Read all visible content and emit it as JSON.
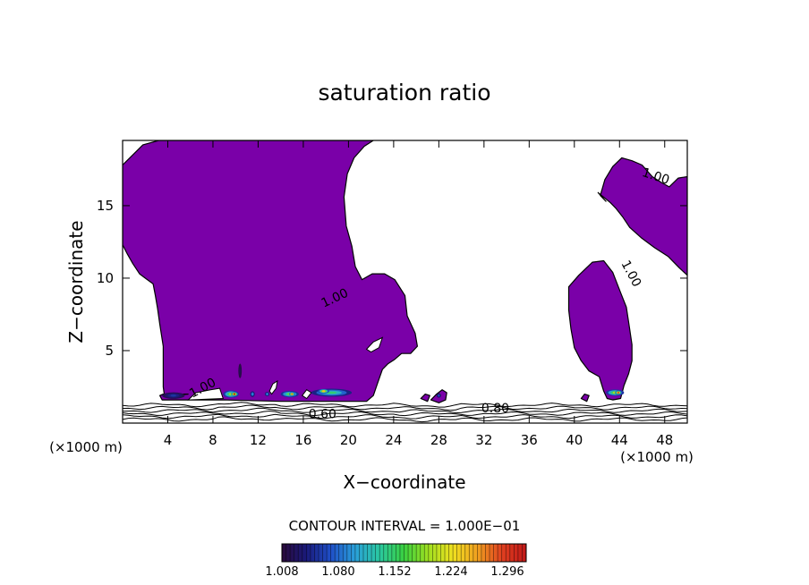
{
  "chart_data": {
    "type": "contour",
    "title": "saturation ratio",
    "xlabel": "X−coordinate",
    "ylabel": "Z−coordinate",
    "x_unit_left": "(×1000 m)",
    "x_unit_right": "(×1000 m)",
    "xlim": [
      0,
      50
    ],
    "ylim": [
      0,
      19.5
    ],
    "x_ticks": [
      4,
      8,
      12,
      16,
      20,
      24,
      28,
      32,
      36,
      40,
      44,
      48
    ],
    "x_tick_labels": [
      "4",
      "8",
      "12",
      "16",
      "20",
      "24",
      "28",
      "32",
      "36",
      "40",
      "44",
      "48"
    ],
    "y_ticks": [
      5,
      10,
      15
    ],
    "y_tick_labels": [
      "5",
      "10",
      "15"
    ],
    "contour_interval_text": "CONTOUR INTERVAL = 1.000E−01",
    "contour_labels": [
      {
        "text": "1.00",
        "x": 47.2,
        "z": 17.0,
        "angle": 18
      },
      {
        "text": "1.00",
        "x": 45.0,
        "z": 10.3,
        "angle": 62
      },
      {
        "text": "1.00",
        "x": 18.8,
        "z": 8.6,
        "angle": -25
      },
      {
        "text": "1.00",
        "x": 7.1,
        "z": 2.4,
        "angle": -28
      },
      {
        "text": "0.80",
        "x": 33.0,
        "z": 1.0,
        "angle": 0
      },
      {
        "text": "0.60",
        "x": 17.7,
        "z": 0.6,
        "angle": 0
      }
    ],
    "colorbar": {
      "min": 1.008,
      "max": 1.32,
      "tick_labels": [
        "1.008",
        "1.080",
        "1.152",
        "1.224",
        "1.296"
      ],
      "colors": [
        "#2a0a3a",
        "#1a1a7a",
        "#1f4fc8",
        "#2aa0d8",
        "#2ac8a0",
        "#3ad040",
        "#a0e020",
        "#f0e020",
        "#f0a020",
        "#e04020",
        "#c01818"
      ]
    },
    "fill_color": "#7a00a8",
    "cloud_regions": [
      {
        "name": "main-cloud",
        "outline": [
          [
            0,
            17.8
          ],
          [
            1.8,
            19.2
          ],
          [
            3.2,
            19.5
          ],
          [
            22.2,
            19.5
          ],
          [
            21.4,
            19.1
          ],
          [
            20.5,
            18.3
          ],
          [
            19.9,
            17.2
          ],
          [
            19.6,
            15.6
          ],
          [
            19.8,
            13.6
          ],
          [
            20.3,
            12.2
          ],
          [
            20.6,
            10.8
          ],
          [
            21.2,
            9.9
          ],
          [
            22.1,
            10.3
          ],
          [
            23.2,
            10.3
          ],
          [
            24.1,
            9.9
          ],
          [
            25.0,
            8.8
          ],
          [
            25.2,
            7.4
          ],
          [
            25.9,
            6.2
          ],
          [
            26.1,
            5.3
          ],
          [
            25.5,
            4.8
          ],
          [
            24.7,
            4.8
          ],
          [
            24.1,
            4.4
          ],
          [
            23.5,
            4.1
          ],
          [
            23.0,
            3.7
          ],
          [
            22.6,
            2.8
          ],
          [
            22.2,
            1.9
          ],
          [
            21.6,
            1.5
          ],
          [
            19.2,
            1.5
          ],
          [
            16.3,
            1.5
          ],
          [
            14.0,
            1.5
          ],
          [
            9.0,
            1.6
          ],
          [
            3.5,
            1.6
          ],
          [
            3.3,
            1.9
          ],
          [
            3.6,
            2.0
          ],
          [
            5.4,
            2.0
          ],
          [
            5.8,
            2.0
          ],
          [
            3.7,
            1.9
          ],
          [
            3.6,
            2.5
          ],
          [
            3.6,
            3.6
          ],
          [
            3.6,
            5.3
          ],
          [
            3.3,
            6.8
          ],
          [
            3.1,
            7.9
          ],
          [
            2.9,
            8.8
          ],
          [
            2.7,
            9.6
          ],
          [
            2.0,
            10.0
          ],
          [
            1.5,
            10.3
          ],
          [
            0.9,
            11.0
          ],
          [
            0.4,
            11.7
          ],
          [
            0,
            12.3
          ]
        ]
      },
      {
        "name": "tall-cloud-east",
        "outline": [
          [
            39.5,
            9.4
          ],
          [
            40.4,
            10.2
          ],
          [
            41.6,
            11.1
          ],
          [
            42.6,
            11.2
          ],
          [
            43.4,
            10.4
          ],
          [
            44.1,
            9.0
          ],
          [
            44.6,
            8.0
          ],
          [
            44.9,
            6.5
          ],
          [
            45.1,
            5.4
          ],
          [
            45.1,
            4.3
          ],
          [
            44.8,
            3.4
          ],
          [
            44.4,
            2.6
          ],
          [
            44.1,
            1.7
          ],
          [
            43.4,
            1.6
          ],
          [
            42.9,
            1.7
          ],
          [
            42.6,
            2.2
          ],
          [
            42.2,
            3.2
          ],
          [
            41.3,
            3.6
          ],
          [
            40.6,
            4.3
          ],
          [
            40.0,
            5.2
          ],
          [
            39.7,
            6.5
          ],
          [
            39.5,
            7.8
          ]
        ]
      },
      {
        "name": "anvil-cloud-east",
        "outline": [
          [
            42.3,
            15.7
          ],
          [
            42.7,
            16.8
          ],
          [
            43.4,
            17.7
          ],
          [
            44.2,
            18.3
          ],
          [
            45.1,
            18.1
          ],
          [
            46.0,
            17.8
          ],
          [
            46.9,
            17.0
          ],
          [
            47.7,
            16.6
          ],
          [
            48.4,
            16.3
          ],
          [
            49.2,
            16.9
          ],
          [
            50,
            17.0
          ],
          [
            50,
            10.2
          ],
          [
            49.3,
            10.7
          ],
          [
            48.3,
            11.5
          ],
          [
            47.1,
            12.1
          ],
          [
            45.9,
            12.8
          ],
          [
            44.9,
            13.5
          ],
          [
            44.3,
            14.2
          ],
          [
            43.7,
            14.8
          ],
          [
            43.2,
            15.2
          ],
          [
            42.1,
            15.9
          ],
          [
            42.8,
            15.3
          ]
        ]
      },
      {
        "name": "small-cell-28",
        "outline": [
          [
            27.3,
            1.6
          ],
          [
            27.8,
            2.0
          ],
          [
            28.3,
            2.3
          ],
          [
            28.7,
            2.1
          ],
          [
            28.6,
            1.6
          ],
          [
            28.0,
            1.4
          ]
        ]
      },
      {
        "name": "small-cell-27",
        "outline": [
          [
            26.4,
            1.7
          ],
          [
            26.8,
            2.0
          ],
          [
            27.2,
            1.9
          ],
          [
            27.0,
            1.5
          ]
        ]
      },
      {
        "name": "small-cell-41",
        "outline": [
          [
            40.6,
            1.7
          ],
          [
            40.9,
            2.0
          ],
          [
            41.3,
            1.9
          ],
          [
            41.1,
            1.5
          ]
        ]
      }
    ],
    "clear_holes": [
      {
        "name": "hole-22",
        "outline": [
          [
            21.6,
            5.1
          ],
          [
            22.2,
            5.6
          ],
          [
            23.0,
            5.9
          ],
          [
            22.7,
            5.2
          ],
          [
            22.0,
            4.9
          ]
        ]
      },
      {
        "name": "hole-13",
        "outline": [
          [
            13.0,
            2.2
          ],
          [
            13.3,
            2.7
          ],
          [
            13.7,
            2.9
          ],
          [
            13.6,
            2.4
          ],
          [
            13.2,
            2.0
          ]
        ]
      },
      {
        "name": "hole-16",
        "outline": [
          [
            15.9,
            1.9
          ],
          [
            16.3,
            2.3
          ],
          [
            16.7,
            2.1
          ],
          [
            16.3,
            1.7
          ]
        ]
      },
      {
        "name": "hole-gap-4",
        "outline": [
          [
            5.8,
            1.6
          ],
          [
            6.5,
            2.1
          ],
          [
            7.8,
            2.3
          ],
          [
            8.6,
            2.4
          ],
          [
            8.9,
            1.7
          ]
        ]
      }
    ],
    "hot_spots": [
      {
        "x": 4.5,
        "z": 1.9,
        "w": 2.0,
        "h": 0.45,
        "level": 0.15
      },
      {
        "x": 9.6,
        "z": 2.0,
        "w": 1.4,
        "h": 0.5,
        "level": 0.6
      },
      {
        "x": 9.9,
        "z": 2.0,
        "w": 0.6,
        "h": 0.3,
        "level": 1.0
      },
      {
        "x": 11.5,
        "z": 2.0,
        "w": 0.4,
        "h": 0.4,
        "level": 0.3
      },
      {
        "x": 14.8,
        "z": 2.0,
        "w": 1.6,
        "h": 0.45,
        "level": 0.55
      },
      {
        "x": 15.0,
        "z": 2.0,
        "w": 0.5,
        "h": 0.3,
        "level": 0.85
      },
      {
        "x": 18.5,
        "z": 2.1,
        "w": 3.6,
        "h": 0.55,
        "level": 0.45
      },
      {
        "x": 17.8,
        "z": 2.2,
        "w": 1.0,
        "h": 0.3,
        "level": 0.75
      },
      {
        "x": 12.8,
        "z": 2.0,
        "w": 0.4,
        "h": 0.3,
        "level": 0.3
      },
      {
        "x": 28.0,
        "z": 1.9,
        "w": 0.4,
        "h": 0.3,
        "level": 0.2
      },
      {
        "x": 43.6,
        "z": 2.1,
        "w": 1.6,
        "h": 0.45,
        "level": 0.6
      },
      {
        "x": 43.9,
        "z": 2.1,
        "w": 0.6,
        "h": 0.3,
        "level": 0.9
      },
      {
        "x": 10.4,
        "z": 3.6,
        "w": 0.3,
        "h": 1.0,
        "level": 0.05
      }
    ],
    "stable_layer_lines": [
      0.25,
      0.45,
      0.65,
      0.85,
      1.05,
      1.25
    ]
  }
}
